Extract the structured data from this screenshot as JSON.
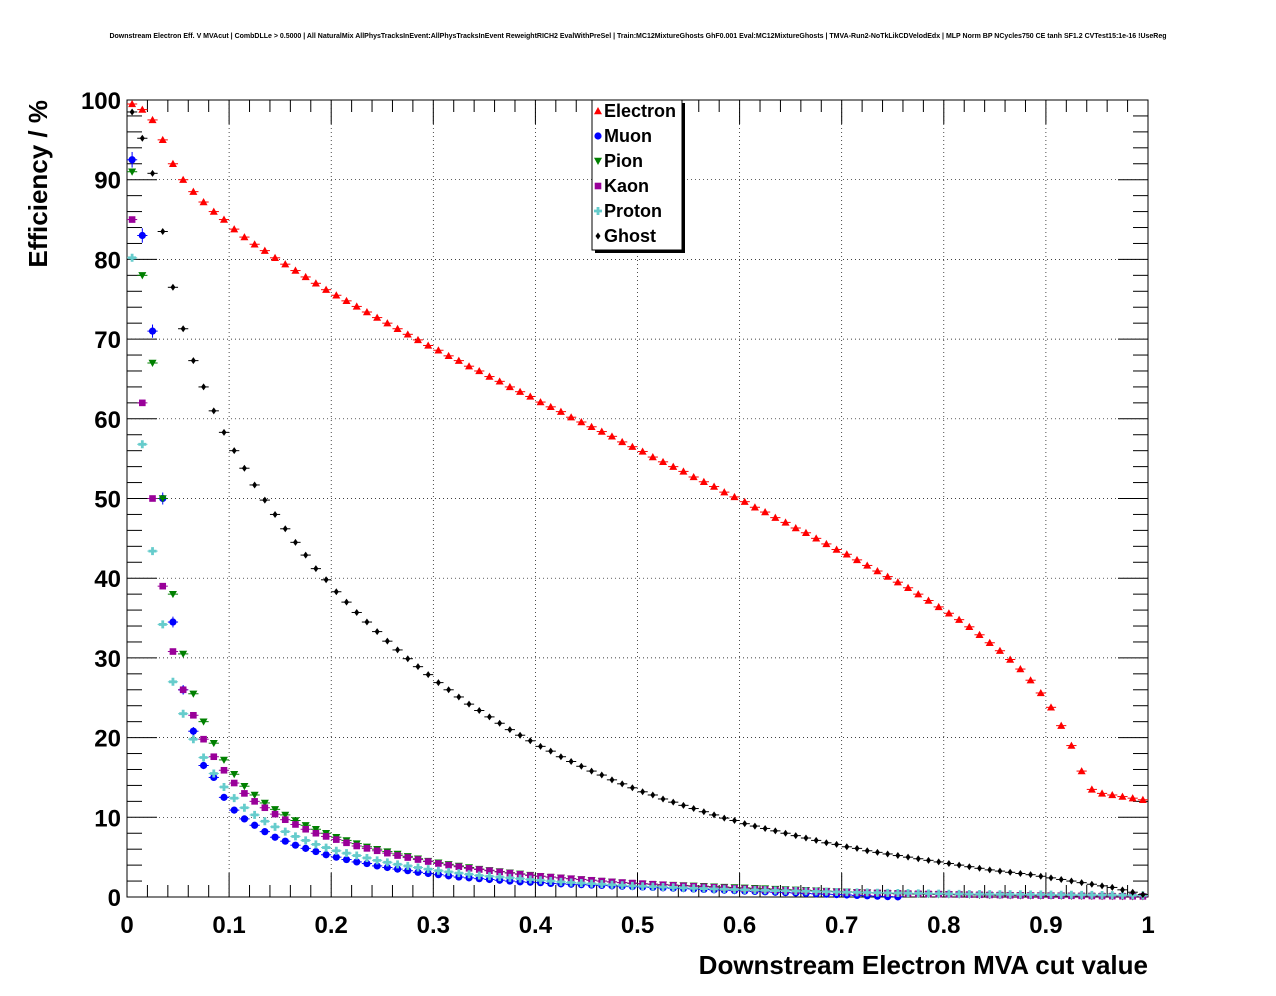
{
  "chart_data": {
    "type": "scatter",
    "title": "Downstream Electron Eff. V MVAcut | CombDLLe > 0.5000 | All NaturalMix AllPhysTracksInEvent:AllPhysTracksInEvent ReweightRICH2 EvalWithPreSel | Train:MC12MixtureGhosts GhF0.001 Eval:MC12MixtureGhosts | TMVA-Run2-NoTkLikCDVelodEdx | MLP Norm BP NCycles750 CE tanh SF1.2 CVTest15:1e-16 !UseReg",
    "xlabel": "Downstream Electron MVA cut value",
    "ylabel": "Efficiency / %",
    "xlim": [
      0,
      1
    ],
    "ylim": [
      0,
      100
    ],
    "xticks": [
      "0",
      "0.1",
      "0.2",
      "0.3",
      "0.4",
      "0.5",
      "0.6",
      "0.7",
      "0.8",
      "0.9",
      "1"
    ],
    "yticks": [
      "0",
      "10",
      "20",
      "30",
      "40",
      "50",
      "60",
      "70",
      "80",
      "90",
      "100"
    ],
    "grid": true,
    "legend_position": "top-center",
    "x": [
      0.005,
      0.015,
      0.025,
      0.035,
      0.045,
      0.055,
      0.065,
      0.075,
      0.085,
      0.095,
      0.105,
      0.115,
      0.125,
      0.135,
      0.145,
      0.155,
      0.165,
      0.175,
      0.185,
      0.195,
      0.205,
      0.215,
      0.225,
      0.235,
      0.245,
      0.255,
      0.265,
      0.275,
      0.285,
      0.295,
      0.305,
      0.315,
      0.325,
      0.335,
      0.345,
      0.355,
      0.365,
      0.375,
      0.385,
      0.395,
      0.405,
      0.415,
      0.425,
      0.435,
      0.445,
      0.455,
      0.465,
      0.475,
      0.485,
      0.495,
      0.505,
      0.515,
      0.525,
      0.535,
      0.545,
      0.555,
      0.565,
      0.575,
      0.585,
      0.595,
      0.605,
      0.615,
      0.625,
      0.635,
      0.645,
      0.655,
      0.665,
      0.675,
      0.685,
      0.695,
      0.705,
      0.715,
      0.725,
      0.735,
      0.745,
      0.755,
      0.765,
      0.775,
      0.785,
      0.795,
      0.805,
      0.815,
      0.825,
      0.835,
      0.845,
      0.855,
      0.865,
      0.875,
      0.885,
      0.895,
      0.905,
      0.915,
      0.925,
      0.935,
      0.945,
      0.955,
      0.965,
      0.975,
      0.985,
      0.995
    ],
    "series": [
      {
        "name": "Electron",
        "color": "#ff0000",
        "marker": "triangle-up",
        "values": [
          99.5,
          98.8,
          97.5,
          95,
          92,
          90,
          88.5,
          87.2,
          86,
          85,
          83.8,
          82.8,
          81.9,
          81.1,
          80.2,
          79.4,
          78.6,
          77.8,
          77,
          76.2,
          75.5,
          74.8,
          74.1,
          73.4,
          72.7,
          72,
          71.3,
          70.6,
          69.9,
          69.2,
          68.6,
          67.9,
          67.3,
          66.6,
          66,
          65.3,
          64.7,
          64,
          63.4,
          62.8,
          62.1,
          61.5,
          60.9,
          60.2,
          59.6,
          59,
          58.4,
          57.8,
          57.1,
          56.5,
          55.9,
          55.2,
          54.6,
          54,
          53.4,
          52.7,
          52.1,
          51.5,
          50.8,
          50.2,
          49.6,
          48.9,
          48.3,
          47.6,
          47,
          46.3,
          45.7,
          45,
          44.3,
          43.6,
          43,
          42.3,
          41.6,
          40.9,
          40.2,
          39.5,
          38.8,
          38,
          37.2,
          36.4,
          35.6,
          34.8,
          33.9,
          32.9,
          31.9,
          30.9,
          29.8,
          28.6,
          27.2,
          25.6,
          23.8,
          21.5,
          19,
          15.8,
          13.5,
          13,
          12.8,
          12.6,
          12.4,
          12.2
        ],
        "x_override": null
      },
      {
        "name": "Muon",
        "color": "#0000ff",
        "marker": "circle",
        "values": [
          92.5,
          83,
          71,
          50,
          34.5,
          26,
          20.8,
          16.5,
          15,
          12.5,
          10.9,
          9.8,
          9,
          8.2,
          7.5,
          7,
          6.5,
          6.1,
          5.7,
          5.3,
          5,
          4.7,
          4.4,
          4.2,
          3.9,
          3.7,
          3.5,
          3.3,
          3.1,
          2.95,
          2.8,
          2.65,
          2.5,
          2.4,
          2.3,
          2.2,
          2.1,
          2,
          1.9,
          1.85,
          1.8,
          1.7,
          1.65,
          1.6,
          1.55,
          1.5,
          1.45,
          1.4,
          1.35,
          1.3,
          1.25,
          1.2,
          1.15,
          1.1,
          1.05,
          1,
          0.95,
          0.9,
          0.85,
          0.8,
          0.75,
          0.7,
          0.65,
          0.6,
          0.55,
          0.5,
          0.45,
          0.4,
          0.35,
          0.3,
          0.25,
          0.2,
          0.15,
          0.1,
          0.05,
          0.02
        ]
      },
      {
        "name": "Pion",
        "color": "#008000",
        "marker": "triangle-down",
        "values": [
          91,
          78,
          67,
          50,
          38,
          30.5,
          25.5,
          22,
          19.3,
          17.2,
          15.4,
          13.9,
          12.8,
          11.8,
          11,
          10.3,
          9.6,
          9,
          8.5,
          8,
          7.5,
          7.1,
          6.7,
          6.3,
          6,
          5.7,
          5.4,
          5.1,
          4.8,
          4.5,
          4.3,
          4.1,
          3.9,
          3.7,
          3.5,
          3.35,
          3.2,
          3.05,
          2.9,
          2.75,
          2.6,
          2.5,
          2.4,
          2.3,
          2.2,
          2.1,
          2,
          1.9,
          1.8,
          1.7,
          1.65,
          1.6,
          1.55,
          1.5,
          1.45,
          1.4,
          1.35,
          1.3,
          1.25,
          1.2,
          1.15,
          1.1,
          1.05,
          1,
          0.95,
          0.9,
          0.85,
          0.8,
          0.75,
          0.7,
          0.65,
          0.6,
          0.55,
          0.5,
          0.45,
          0.4,
          0.38,
          0.36,
          0.34,
          0.32,
          0.3,
          0.28,
          0.26,
          0.24,
          0.22,
          0.2,
          0.19,
          0.18,
          0.17,
          0.16,
          0.15,
          0.14,
          0.13,
          0.12,
          0.11,
          0.1,
          0.09,
          0.08,
          0.07,
          0.06
        ]
      },
      {
        "name": "Kaon",
        "color": "#990099",
        "marker": "square",
        "values": [
          85,
          62,
          50,
          39,
          30.8,
          26,
          22.8,
          19.8,
          17.6,
          15.9,
          14.3,
          13,
          12,
          11.2,
          10.4,
          9.7,
          9.1,
          8.5,
          8,
          7.6,
          7.2,
          6.8,
          6.4,
          6.1,
          5.8,
          5.5,
          5.2,
          4.95,
          4.7,
          4.45,
          4.2,
          4,
          3.8,
          3.6,
          3.45,
          3.3,
          3.15,
          3,
          2.85,
          2.7,
          2.6,
          2.5,
          2.4,
          2.3,
          2.2,
          2.1,
          2,
          1.9,
          1.82,
          1.75,
          1.68,
          1.61,
          1.54,
          1.47,
          1.4,
          1.34,
          1.28,
          1.22,
          1.16,
          1.1,
          1.05,
          1,
          0.95,
          0.9,
          0.86,
          0.82,
          0.78,
          0.74,
          0.7,
          0.66,
          0.62,
          0.58,
          0.55,
          0.52,
          0.49,
          0.46,
          0.43,
          0.4,
          0.38,
          0.36,
          0.34,
          0.32,
          0.3,
          0.28,
          0.26,
          0.24,
          0.22,
          0.2,
          0.19,
          0.18,
          0.17,
          0.16,
          0.15,
          0.14,
          0.13,
          0.12,
          0.11,
          0.1,
          0.09,
          0.08
        ]
      },
      {
        "name": "Proton",
        "color": "#66cccc",
        "marker": "cross",
        "values": [
          80.2,
          56.8,
          43.4,
          34.2,
          27,
          23,
          19.8,
          17.5,
          15.5,
          13.8,
          12.4,
          11.2,
          10.3,
          9.5,
          8.8,
          8.2,
          7.6,
          7.1,
          6.6,
          6.2,
          5.8,
          5.5,
          5.2,
          4.9,
          4.6,
          4.35,
          4.1,
          3.9,
          3.7,
          3.5,
          3.3,
          3.15,
          3,
          2.85,
          2.7,
          2.6,
          2.5,
          2.4,
          2.3,
          2.2,
          2.1,
          2,
          1.9,
          1.82,
          1.75,
          1.68,
          1.61,
          1.54,
          1.47,
          1.4,
          1.35,
          1.3,
          1.25,
          1.2,
          1.15,
          1.1,
          1.06,
          1.02,
          0.98,
          0.94,
          0.9,
          0.87,
          0.84,
          0.81,
          0.78,
          0.75,
          0.72,
          0.69,
          0.66,
          0.63,
          0.6,
          0.58,
          0.56,
          0.54,
          0.52,
          0.5,
          0.48,
          0.46,
          0.44,
          0.42,
          0.4,
          0.39,
          0.38,
          0.37,
          0.36,
          0.35,
          0.34,
          0.33,
          0.32,
          0.31,
          0.3,
          0.29,
          0.28,
          0.27,
          0.26,
          0.25,
          0.24,
          0.23,
          0.22,
          0.21
        ]
      },
      {
        "name": "Ghost",
        "color": "#000000",
        "marker": "diamond",
        "values": [
          98.5,
          95.2,
          90.8,
          83.5,
          76.5,
          71.3,
          67.3,
          64,
          61,
          58.3,
          56,
          53.8,
          51.7,
          49.8,
          48,
          46.2,
          44.5,
          42.9,
          41.2,
          39.8,
          38.3,
          37,
          35.7,
          34.5,
          33.3,
          32.1,
          31,
          29.9,
          28.9,
          27.9,
          26.9,
          26,
          25.1,
          24.2,
          23.4,
          22.6,
          21.8,
          21,
          20.3,
          19.6,
          18.9,
          18.3,
          17.6,
          17,
          16.4,
          15.8,
          15.3,
          14.7,
          14.2,
          13.7,
          13.2,
          12.8,
          12.3,
          11.9,
          11.5,
          11.1,
          10.7,
          10.3,
          9.9,
          9.6,
          9.2,
          8.9,
          8.6,
          8.3,
          8,
          7.7,
          7.4,
          7.1,
          6.8,
          6.6,
          6.3,
          6.1,
          5.8,
          5.6,
          5.4,
          5.2,
          5,
          4.8,
          4.6,
          4.4,
          4.2,
          4,
          3.8,
          3.6,
          3.4,
          3.25,
          3.1,
          2.95,
          2.8,
          2.6,
          2.4,
          2.2,
          2,
          1.8,
          1.6,
          1.4,
          1.2,
          0.9,
          0.6,
          0.3
        ]
      }
    ]
  }
}
